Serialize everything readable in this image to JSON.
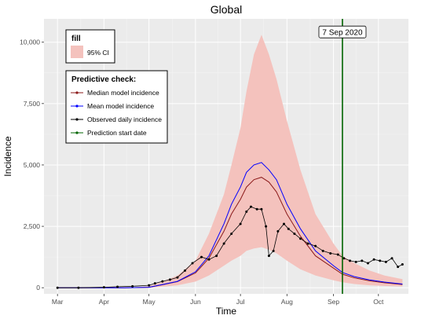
{
  "chart_data": {
    "type": "line",
    "title": "Global",
    "xlabel": "Time",
    "ylabel": "Incidence",
    "x_ticks": [
      {
        "date": "2020-03-01",
        "label": "Mar"
      },
      {
        "date": "2020-04-01",
        "label": "Apr"
      },
      {
        "date": "2020-05-01",
        "label": "May"
      },
      {
        "date": "2020-06-01",
        "label": "Jun"
      },
      {
        "date": "2020-07-01",
        "label": "Jul"
      },
      {
        "date": "2020-08-01",
        "label": "Aug"
      },
      {
        "date": "2020-09-01",
        "label": "Sep"
      },
      {
        "date": "2020-10-01",
        "label": "Oct"
      }
    ],
    "y_ticks": [
      {
        "value": 0,
        "label": "0"
      },
      {
        "value": 2500,
        "label": "2,500"
      },
      {
        "value": 5000,
        "label": "5,000"
      },
      {
        "value": 7500,
        "label": "7,500"
      },
      {
        "value": 10000,
        "label": "10,000"
      }
    ],
    "xlim": [
      "2020-02-21",
      "2020-10-21"
    ],
    "ylim": [
      -250,
      10950
    ],
    "grid": true,
    "background": "#ebebeb",
    "x": [
      "2020-03-01",
      "2020-03-15",
      "2020-04-01",
      "2020-04-15",
      "2020-05-01",
      "2020-05-10",
      "2020-05-20",
      "2020-06-01",
      "2020-06-10",
      "2020-06-20",
      "2020-06-25",
      "2020-07-01",
      "2020-07-05",
      "2020-07-10",
      "2020-07-15",
      "2020-07-20",
      "2020-07-25",
      "2020-08-01",
      "2020-08-10",
      "2020-08-20",
      "2020-09-01",
      "2020-09-07",
      "2020-09-15",
      "2020-09-25",
      "2020-10-05",
      "2020-10-17"
    ],
    "ribbon": {
      "name": "95% CI",
      "color": "#f4c2bd",
      "lower": [
        0,
        0,
        0,
        0,
        0,
        40,
        100,
        250,
        500,
        900,
        1100,
        1300,
        1500,
        1600,
        1650,
        1550,
        1400,
        1100,
        750,
        500,
        300,
        220,
        150,
        100,
        70,
        50
      ],
      "upper": [
        0,
        0,
        0,
        0,
        60,
        250,
        500,
        1100,
        2200,
        3800,
        5000,
        6500,
        8000,
        9500,
        10300,
        9500,
        8500,
        6800,
        4800,
        3000,
        1800,
        1300,
        1000,
        700,
        500,
        350
      ]
    },
    "legend_fill": {
      "title": "fill",
      "entries": [
        {
          "label": "95% CI",
          "color": "#f4c2bd"
        }
      ]
    },
    "legend_lines": {
      "title": "Predictive check:",
      "entries": [
        {
          "label": "Median model incidence",
          "color": "#8b1a1a"
        },
        {
          "label": "Mean model incidence",
          "color": "#0000ff"
        },
        {
          "label": "Observed daily incidence",
          "color": "#000000"
        },
        {
          "label": "Prediction start date",
          "color": "#006400"
        }
      ]
    },
    "series": [
      {
        "name": "Median model incidence",
        "color": "#8b1a1a",
        "values": [
          0,
          0,
          0,
          0,
          20,
          120,
          250,
          600,
          1200,
          2300,
          3000,
          3600,
          4100,
          4400,
          4500,
          4300,
          3900,
          3000,
          2100,
          1300,
          800,
          550,
          400,
          280,
          200,
          130
        ]
      },
      {
        "name": "Mean model incidence",
        "color": "#0000ff",
        "values": [
          0,
          0,
          0,
          0,
          20,
          130,
          260,
          650,
          1300,
          2600,
          3400,
          4100,
          4700,
          5000,
          5100,
          4800,
          4400,
          3400,
          2400,
          1500,
          900,
          620,
          450,
          320,
          230,
          150
        ]
      }
    ],
    "observed": {
      "name": "Observed daily incidence",
      "color": "#000000",
      "x": [
        "2020-03-01",
        "2020-03-15",
        "2020-04-01",
        "2020-04-10",
        "2020-04-20",
        "2020-05-01",
        "2020-05-05",
        "2020-05-10",
        "2020-05-15",
        "2020-05-20",
        "2020-05-25",
        "2020-05-30",
        "2020-06-05",
        "2020-06-10",
        "2020-06-15",
        "2020-06-20",
        "2020-06-25",
        "2020-07-01",
        "2020-07-05",
        "2020-07-08",
        "2020-07-12",
        "2020-07-15",
        "2020-07-18",
        "2020-07-20",
        "2020-07-23",
        "2020-07-26",
        "2020-07-30",
        "2020-08-02",
        "2020-08-06",
        "2020-08-10",
        "2020-08-15",
        "2020-08-20",
        "2020-08-25",
        "2020-08-30",
        "2020-09-04",
        "2020-09-08",
        "2020-09-12",
        "2020-09-16",
        "2020-09-20",
        "2020-09-24",
        "2020-09-28",
        "2020-10-02",
        "2020-10-06",
        "2020-10-10",
        "2020-10-14",
        "2020-10-17"
      ],
      "values": [
        0,
        0,
        20,
        40,
        60,
        100,
        180,
        260,
        330,
        420,
        700,
        1000,
        1250,
        1150,
        1300,
        1800,
        2200,
        2600,
        3100,
        3300,
        3200,
        3200,
        2500,
        1300,
        1500,
        2300,
        2600,
        2400,
        2200,
        2000,
        1800,
        1700,
        1500,
        1400,
        1350,
        1200,
        1100,
        1050,
        1100,
        1000,
        1150,
        1100,
        1050,
        1200,
        850,
        950
      ]
    },
    "annotations": [
      {
        "type": "vline",
        "date": "2020-09-07",
        "label": "7 Sep 2020",
        "color": "#006400"
      }
    ]
  }
}
